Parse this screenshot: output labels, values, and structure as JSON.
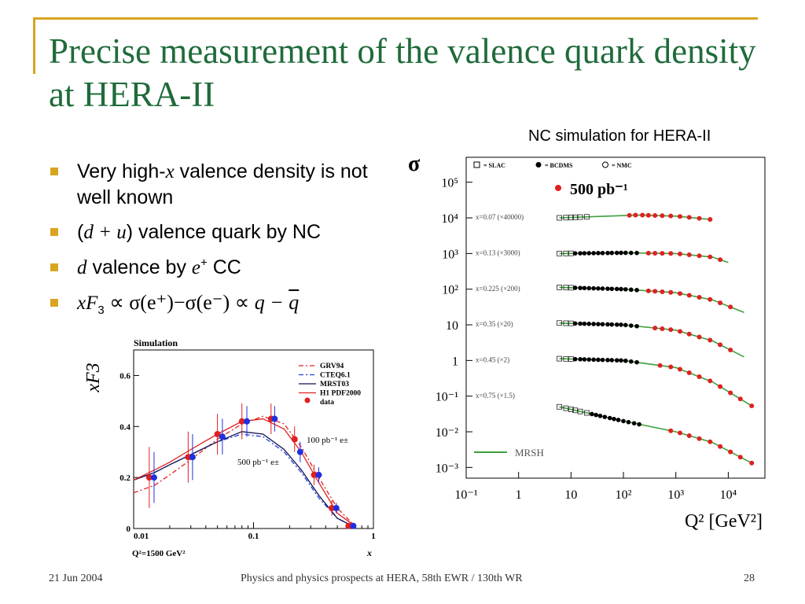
{
  "slide": {
    "title": "Precise measurement of the valence quark density at HERA-II",
    "caption": "NC simulation for HERA-II",
    "footer_date": "21 Jun 2004",
    "footer_text": "Physics and physics prospects at HERA, 58th EWR / 130th WR",
    "page_number": "28",
    "accent_color": "#d9a521",
    "title_color": "#1f6b3a"
  },
  "bullets": [
    {
      "pre": "Very high-",
      "var": "x",
      "post": " valence density is not well known"
    },
    {
      "open": "(",
      "d": "d",
      "plus": " + ",
      "u": "u",
      "close": ")",
      "text": " valence quark by NC"
    },
    {
      "d": "d",
      "text": " valence by ",
      "e": "e",
      "sup": "+",
      "post": " CC"
    },
    {
      "xF": "xF",
      "sub": "3",
      "formula": " ∝ σ(e⁺)−σ(e⁻) ∝ ",
      "q": "q − ",
      "qbar": "q"
    }
  ],
  "chart_data": [
    {
      "type": "line",
      "title": "Simulation",
      "ylabel": "xF3",
      "xlabel": "x",
      "x_scale": "log",
      "xlim": [
        0.01,
        1
      ],
      "ylim": [
        0,
        0.7
      ],
      "x_ticks": [
        "0.01",
        "0.1",
        "1"
      ],
      "y_ticks": [
        "0",
        "0.2",
        "0.4",
        "0.6"
      ],
      "note": "Q²=1500 GeV²",
      "annotations": [
        "100 pb⁻¹ e±",
        "500 pb⁻¹ e±"
      ],
      "legend": [
        "GRV94",
        "CTEQ6.1",
        "MRST03",
        "H1 PDF2000",
        "data"
      ],
      "legend_position": "top-right",
      "series": [
        {
          "name": "GRV94",
          "color": "#e02020",
          "dash": "dashdot",
          "x": [
            0.01,
            0.015,
            0.02,
            0.03,
            0.05,
            0.08,
            0.12,
            0.18,
            0.25,
            0.35,
            0.5,
            0.7
          ],
          "y": [
            0.14,
            0.17,
            0.21,
            0.27,
            0.35,
            0.41,
            0.44,
            0.41,
            0.32,
            0.2,
            0.08,
            0.01
          ]
        },
        {
          "name": "CTEQ6.1",
          "color": "#2040e0",
          "dash": "dashdot",
          "x": [
            0.01,
            0.015,
            0.02,
            0.03,
            0.05,
            0.08,
            0.12,
            0.18,
            0.25,
            0.35,
            0.5,
            0.7
          ],
          "y": [
            0.19,
            0.22,
            0.25,
            0.29,
            0.34,
            0.37,
            0.36,
            0.3,
            0.22,
            0.12,
            0.04,
            0.005
          ]
        },
        {
          "name": "MRST03",
          "color": "#101050",
          "dash": "solid",
          "x": [
            0.01,
            0.015,
            0.02,
            0.03,
            0.05,
            0.08,
            0.12,
            0.18,
            0.25,
            0.35,
            0.5,
            0.7
          ],
          "y": [
            0.19,
            0.22,
            0.25,
            0.29,
            0.34,
            0.38,
            0.37,
            0.31,
            0.23,
            0.13,
            0.04,
            0.005
          ]
        },
        {
          "name": "H1 PDF2000",
          "color": "#e02020",
          "dash": "solid",
          "x": [
            0.01,
            0.015,
            0.02,
            0.03,
            0.05,
            0.08,
            0.12,
            0.18,
            0.25,
            0.35,
            0.5,
            0.7
          ],
          "y": [
            0.19,
            0.23,
            0.26,
            0.31,
            0.37,
            0.42,
            0.43,
            0.39,
            0.3,
            0.18,
            0.06,
            0.01
          ]
        }
      ],
      "points": [
        {
          "name": "data 100 pb-1",
          "color": "#e02020",
          "x": [
            0.0135,
            0.0285,
            0.05,
            0.08,
            0.14,
            0.22,
            0.32,
            0.45,
            0.62
          ],
          "y": [
            0.2,
            0.28,
            0.37,
            0.42,
            0.43,
            0.35,
            0.21,
            0.08,
            0.01
          ],
          "err": [
            0.12,
            0.1,
            0.08,
            0.07,
            0.06,
            0.05,
            0.04,
            0.03,
            0.01
          ]
        },
        {
          "name": "data 500 pb-1",
          "color": "#2030e0",
          "x": [
            0.0148,
            0.031,
            0.055,
            0.088,
            0.15,
            0.245,
            0.35,
            0.49,
            0.68
          ],
          "y": [
            0.2,
            0.28,
            0.36,
            0.42,
            0.43,
            0.3,
            0.21,
            0.08,
            0.01
          ],
          "err": [
            0.1,
            0.09,
            0.07,
            0.06,
            0.05,
            0.04,
            0.03,
            0.02,
            0.01
          ]
        }
      ]
    },
    {
      "type": "scatter",
      "ylabel": "σ",
      "xlabel": "Q² [GeV²]",
      "x_scale": "log",
      "y_scale": "log",
      "xlim": [
        0.1,
        50000
      ],
      "ylim": [
        0.0005,
        500000
      ],
      "x_ticks": [
        "10⁻¹",
        "1",
        "10",
        "10²",
        "10³",
        "10⁴"
      ],
      "y_ticks": [
        "10⁵",
        "10⁴",
        "10³",
        "10²",
        "10",
        "1",
        "10⁻¹",
        "10⁻²",
        "10⁻³"
      ],
      "legend": [
        "= SLAC",
        "= BCDMS",
        "= NMC",
        "500 pb⁻¹",
        "MRSH"
      ],
      "legend_position": "top",
      "bins": [
        {
          "label": "x=0.07 (×40000)",
          "level": 4,
          "fixed_x": [
            6,
            8,
            10,
            12,
            15,
            20
          ],
          "bcdms_x": [],
          "sim_x": [
            130,
            170,
            230,
            300,
            400,
            550,
            800,
            1200,
            1800,
            2800,
            4500
          ],
          "curve_x": [
            6,
            50,
            200,
            1000,
            5000
          ],
          "curve_y": [
            4,
            4.05,
            4.08,
            4.05,
            3.95
          ]
        },
        {
          "label": "x=0.13 (×3000)",
          "level": 3,
          "fixed_x": [
            6,
            8,
            10
          ],
          "bcdms_x": [
            12,
            15,
            18,
            22,
            27,
            33,
            40,
            50,
            60,
            75,
            90,
            110,
            140,
            180
          ],
          "sim_x": [
            300,
            400,
            550,
            800,
            1200,
            1800,
            2800,
            4500,
            7000
          ],
          "curve_x": [
            6,
            100,
            1000,
            5000,
            10000
          ],
          "curve_y": [
            3,
            3.02,
            3.0,
            2.9,
            2.75
          ]
        },
        {
          "label": "x=0.225 (×200)",
          "level": 2,
          "fixed_x": [
            6,
            8,
            10
          ],
          "bcdms_x": [
            12,
            15,
            18,
            22,
            27,
            33,
            40,
            50,
            60,
            75,
            90,
            110,
            140,
            180
          ],
          "sim_x": [
            300,
            400,
            550,
            800,
            1200,
            1800,
            2800,
            4500,
            7000,
            11000
          ],
          "curve_x": [
            6,
            100,
            1000,
            5000,
            20000
          ],
          "curve_y": [
            2.05,
            2.0,
            1.9,
            1.7,
            1.35
          ]
        },
        {
          "label": "x=0.35 (×20)",
          "level": 1,
          "fixed_x": [
            6,
            8,
            10
          ],
          "bcdms_x": [
            12,
            15,
            18,
            22,
            27,
            33,
            40,
            50,
            60,
            75,
            90,
            110,
            140,
            180
          ],
          "sim_x": [
            400,
            550,
            800,
            1200,
            1800,
            2800,
            4500,
            7000,
            11000
          ],
          "curve_x": [
            6,
            100,
            1000,
            5000,
            20000
          ],
          "curve_y": [
            1.05,
            1.0,
            0.85,
            0.55,
            0.1
          ]
        },
        {
          "label": "x=0.45 (×2)",
          "level": 0,
          "fixed_x": [
            6,
            8,
            10
          ],
          "bcdms_x": [
            12,
            15,
            18,
            22,
            27,
            33,
            40,
            50,
            60,
            75,
            90,
            110,
            140,
            180
          ],
          "sim_x": [
            500,
            800,
            1200,
            1800,
            2800,
            4500,
            7000,
            11000,
            17000,
            28000
          ],
          "curve_x": [
            6,
            100,
            1000,
            5000,
            30000
          ],
          "curve_y": [
            0.05,
            0.0,
            -0.2,
            -0.6,
            -1.3
          ]
        },
        {
          "label": "x=0.75 (×1.5)",
          "level": -1,
          "fixed_x": [
            6,
            8,
            10,
            12,
            15,
            20
          ],
          "bcdms_x": [
            25,
            30,
            36,
            44,
            55,
            66,
            80,
            100,
            125,
            160,
            200
          ],
          "sim_x": [
            800,
            1200,
            1800,
            2800,
            4500,
            7000,
            11000,
            17000,
            28000
          ],
          "curve_x": [
            6,
            100,
            1000,
            5000,
            30000
          ],
          "curve_y": [
            -1.3,
            -1.7,
            -2.0,
            -2.3,
            -2.9
          ]
        }
      ]
    }
  ]
}
